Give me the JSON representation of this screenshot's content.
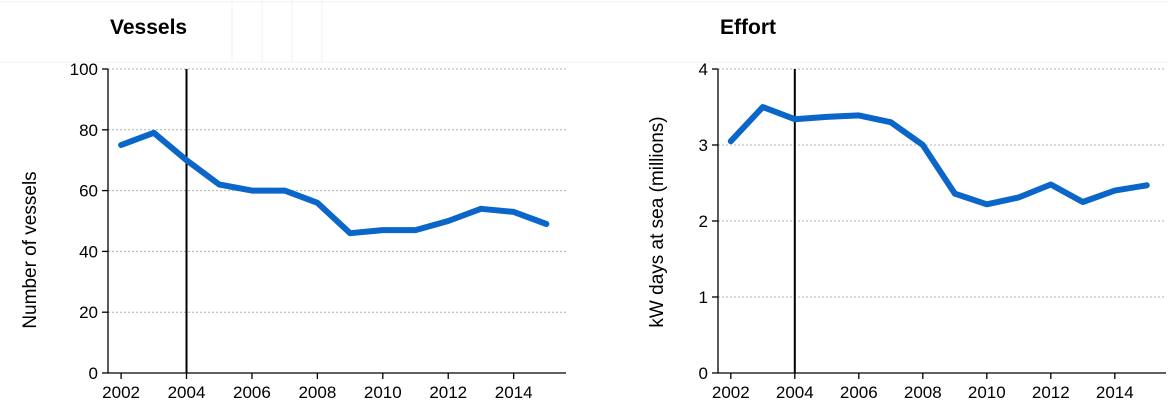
{
  "colors": {
    "series": "#0a66c8",
    "axis": "#000000",
    "grid": "#b0b0b0"
  },
  "chart_data": [
    {
      "type": "line",
      "title": "Vessels",
      "xlabel": "",
      "ylabel": "Number of vessels",
      "x": [
        2002,
        2003,
        2004,
        2005,
        2006,
        2007,
        2008,
        2009,
        2010,
        2011,
        2012,
        2013,
        2014,
        2015
      ],
      "values": [
        75,
        79,
        70,
        62,
        60,
        60,
        56,
        46,
        47,
        47,
        50,
        54,
        53,
        49
      ],
      "xlim": [
        2001.6,
        2015.6
      ],
      "ylim": [
        0,
        100
      ],
      "xticks": [
        "2002",
        "2004",
        "2006",
        "2008",
        "2010",
        "2012",
        "2014"
      ],
      "yticks": [
        "0",
        "20",
        "40",
        "60",
        "80",
        "100"
      ],
      "marker_year": 2004,
      "grid": "horizontal dotted"
    },
    {
      "type": "line",
      "title": "Effort",
      "xlabel": "",
      "ylabel": "kW days at sea (millions)",
      "x": [
        2002,
        2003,
        2004,
        2005,
        2006,
        2007,
        2008,
        2009,
        2010,
        2011,
        2012,
        2013,
        2014,
        2015
      ],
      "values": [
        3.05,
        3.5,
        3.34,
        3.37,
        3.39,
        3.3,
        3.0,
        2.36,
        2.22,
        2.31,
        2.48,
        2.25,
        2.4,
        2.47
      ],
      "xlim": [
        2001.6,
        2015.6
      ],
      "ylim": [
        0,
        4
      ],
      "xticks": [
        "2002",
        "2004",
        "2006",
        "2008",
        "2010",
        "2012",
        "2014"
      ],
      "yticks": [
        "0",
        "1",
        "2",
        "3",
        "4"
      ],
      "marker_year": 2004,
      "grid": "horizontal dotted"
    }
  ]
}
